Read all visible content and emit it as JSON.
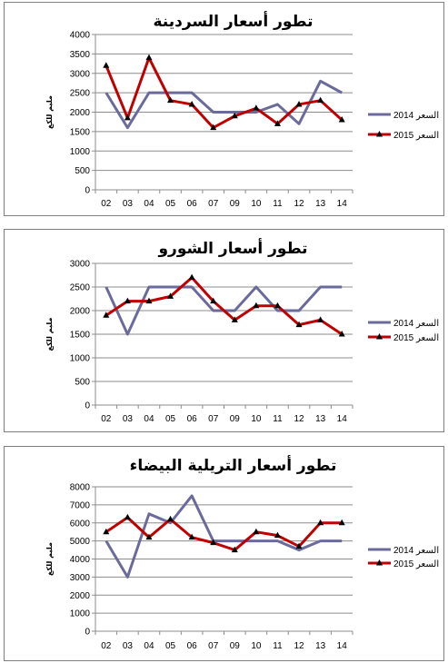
{
  "chart_data": [
    {
      "type": "line",
      "title": "تطور أسعار السردينة",
      "ylabel": "مليم للكغ",
      "categories": [
        "02",
        "03",
        "04",
        "05",
        "06",
        "07",
        "09",
        "10",
        "11",
        "12",
        "13",
        "14"
      ],
      "ylim": [
        0,
        4000
      ],
      "yticks": [
        0,
        500,
        1000,
        1500,
        2000,
        2500,
        3000,
        3500,
        4000
      ],
      "legend_position": "right",
      "series": [
        {
          "name": "السعر 2014",
          "color": "#6b6b9b",
          "marker": "none",
          "values": [
            2500,
            1600,
            2500,
            2500,
            2500,
            2000,
            2000,
            2000,
            2200,
            1700,
            2800,
            2500
          ]
        },
        {
          "name": "السعر 2015",
          "color": "#c00000",
          "marker": "triangle",
          "values": [
            3200,
            1850,
            3400,
            2300,
            2200,
            1600,
            1900,
            2100,
            1700,
            2200,
            2300,
            1800
          ]
        }
      ]
    },
    {
      "type": "line",
      "title": "تطور أسعار الشورو",
      "ylabel": "مليم للكغ",
      "categories": [
        "02",
        "03",
        "04",
        "05",
        "06",
        "07",
        "09",
        "10",
        "11",
        "12",
        "13",
        "14"
      ],
      "ylim": [
        0,
        3000
      ],
      "yticks": [
        0,
        500,
        1000,
        1500,
        2000,
        2500,
        3000
      ],
      "legend_position": "right",
      "series": [
        {
          "name": "السعر 2014",
          "color": "#6b6b9b",
          "marker": "none",
          "values": [
            2500,
            1500,
            2500,
            2500,
            2500,
            2000,
            2000,
            2500,
            2000,
            2000,
            2500,
            2500
          ]
        },
        {
          "name": "السعر 2015",
          "color": "#c00000",
          "marker": "triangle",
          "values": [
            1900,
            2200,
            2200,
            2300,
            2700,
            2200,
            1800,
            2100,
            2100,
            1700,
            1800,
            1500
          ]
        }
      ]
    },
    {
      "type": "line",
      "title": "تطور أسعار التريلية البيضاء",
      "ylabel": "مليم للكغ",
      "categories": [
        "02",
        "03",
        "04",
        "05",
        "06",
        "07",
        "09",
        "10",
        "11",
        "12",
        "13",
        "14"
      ],
      "ylim": [
        0,
        8000
      ],
      "yticks": [
        0,
        1000,
        2000,
        3000,
        4000,
        5000,
        6000,
        7000,
        8000
      ],
      "legend_position": "right",
      "series": [
        {
          "name": "السعر 2014",
          "color": "#6b6b9b",
          "marker": "none",
          "values": [
            5000,
            3000,
            6500,
            6000,
            7500,
            5000,
            5000,
            5000,
            5000,
            4500,
            5000,
            5000
          ]
        },
        {
          "name": "السعر 2015",
          "color": "#c00000",
          "marker": "triangle",
          "values": [
            5500,
            6300,
            5200,
            6200,
            5200,
            4900,
            4500,
            5500,
            5300,
            4700,
            6000,
            6000
          ]
        }
      ]
    }
  ]
}
